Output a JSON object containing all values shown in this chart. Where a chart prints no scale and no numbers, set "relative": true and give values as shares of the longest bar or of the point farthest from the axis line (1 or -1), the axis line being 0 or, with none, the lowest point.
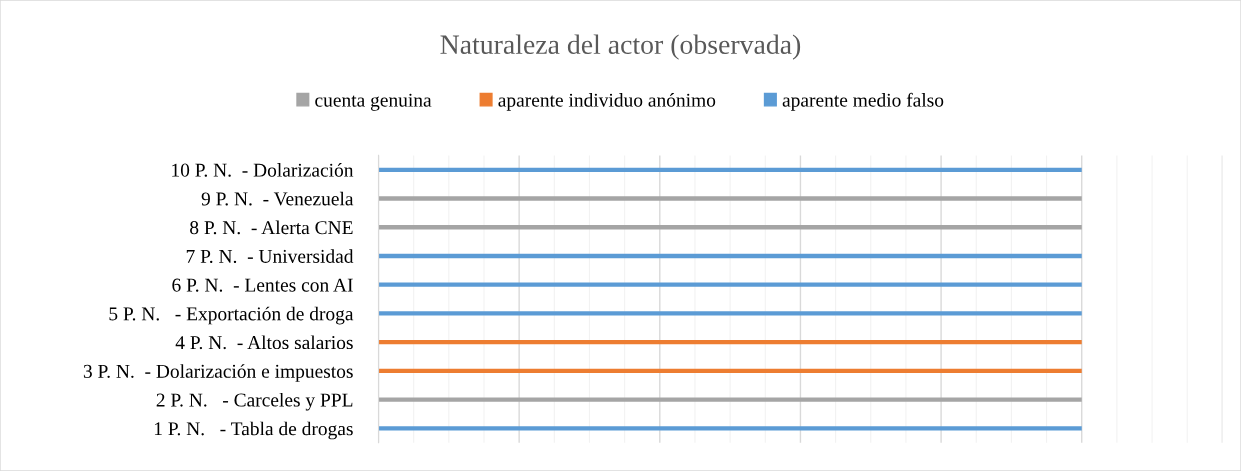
{
  "chart_data": {
    "type": "bar",
    "orientation": "horizontal",
    "relative": true,
    "title": "Naturaleza del actor (observada)",
    "categories": [
      "10 P. N.  - Dolarización",
      "9 P. N.  - Venezuela",
      "8 P. N.  - Alerta CNE",
      "7 P. N.  - Universidad",
      "6 P. N.  - Lentes con AI",
      "5 P. N.   - Exportación de droga",
      "4 P. N.  - Altos salarios",
      "3 P. N.  - Dolarización e impuestos",
      "2 P. N.   - Carceles y PPL",
      "1 P. N.   - Tabla de drogas"
    ],
    "series": [
      {
        "name": "cuenta genuina",
        "color": "#a5a5a5",
        "values": [
          null,
          1,
          1,
          null,
          null,
          null,
          null,
          null,
          1,
          null
        ]
      },
      {
        "name": "aparente individuo anónimo",
        "color": "#ed7d31",
        "values": [
          null,
          null,
          null,
          null,
          null,
          null,
          1,
          1,
          null,
          null
        ]
      },
      {
        "name": "aparente medio falso",
        "color": "#5b9bd5",
        "values": [
          1,
          null,
          null,
          1,
          1,
          1,
          null,
          null,
          null,
          1
        ]
      }
    ],
    "grid": "x",
    "legend": "top"
  }
}
